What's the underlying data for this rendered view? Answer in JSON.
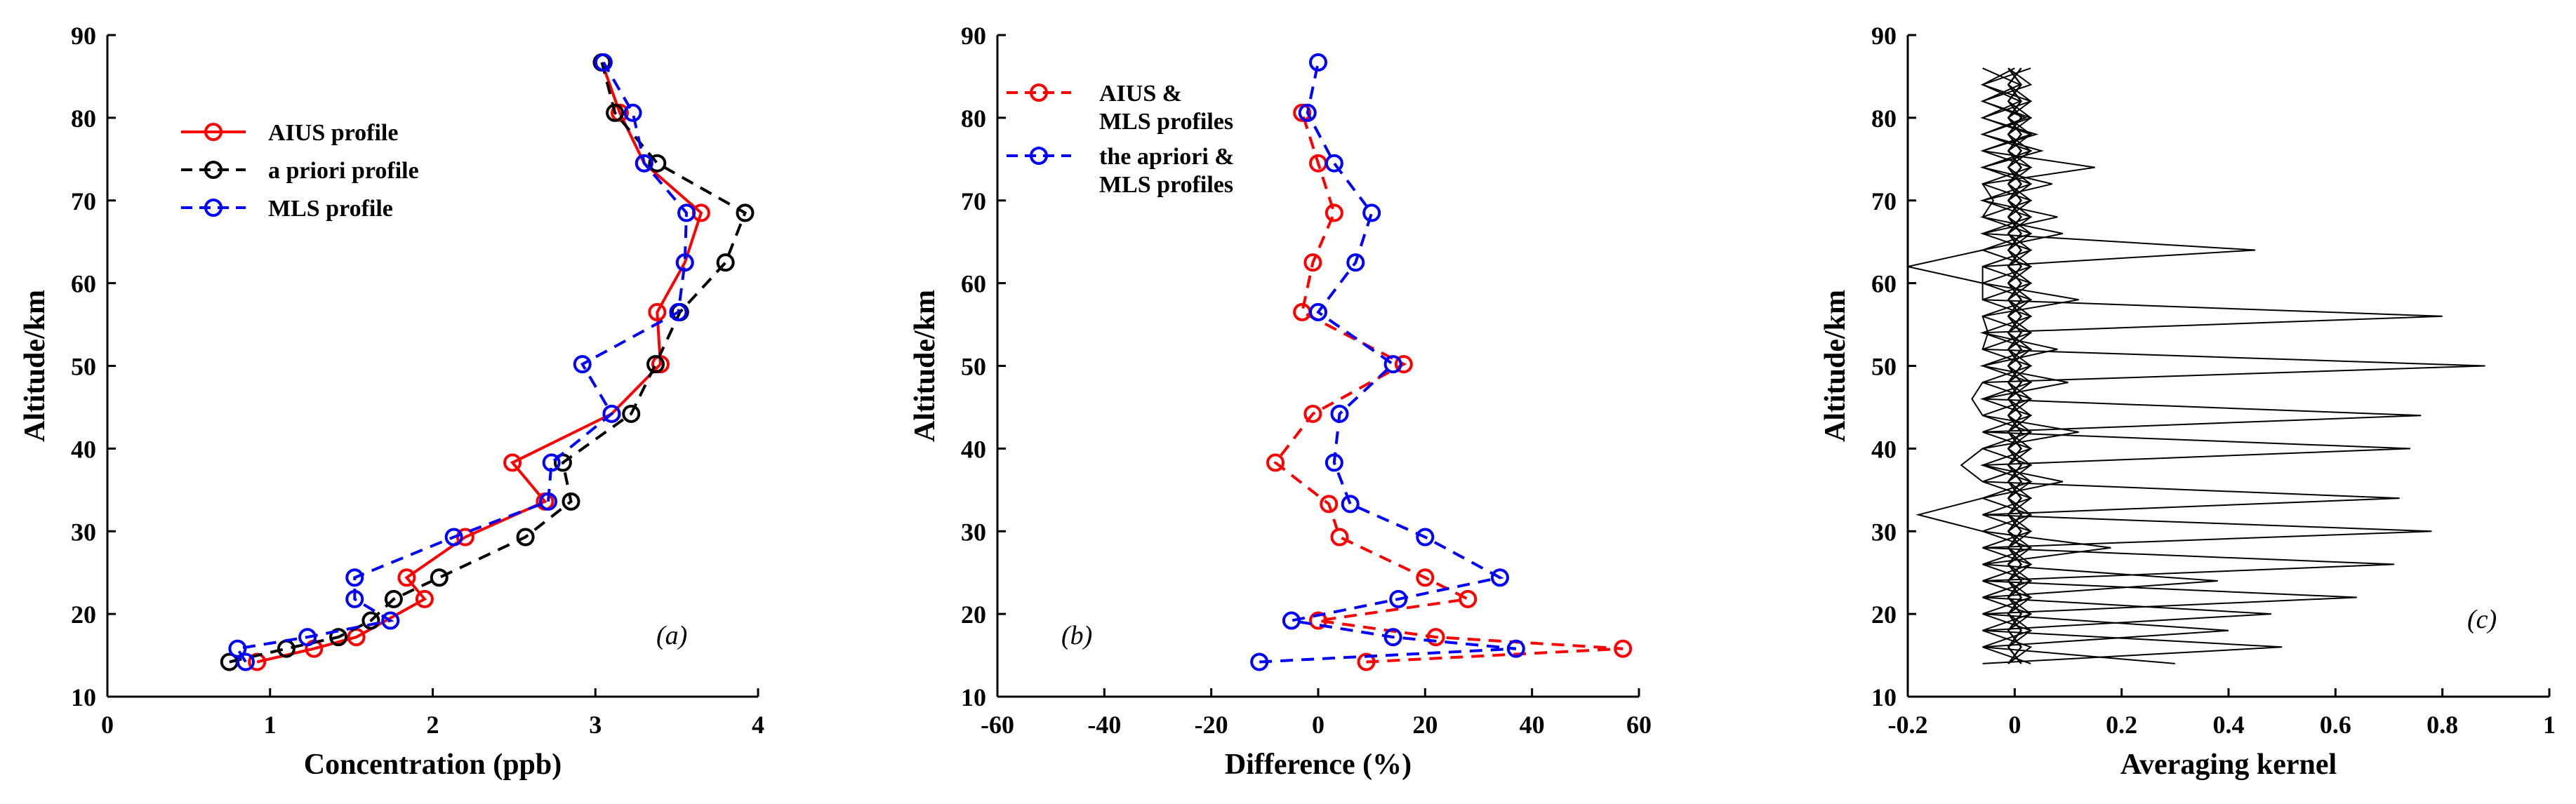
{
  "chart_data": [
    {
      "type": "line",
      "panel_label": "(a)",
      "xlabel": "Concentration (ppb)",
      "ylabel": "Altitude/km",
      "xlim": [
        0,
        4
      ],
      "ylim": [
        10,
        90
      ],
      "xticks": [
        0,
        1,
        2,
        3,
        4
      ],
      "yticks": [
        10,
        20,
        30,
        40,
        50,
        60,
        70,
        80,
        90
      ],
      "legend_position": "top-left",
      "series": [
        {
          "name": "AIUS profile",
          "color": "#ff0000",
          "dash": "solid",
          "x": [
            0.92,
            1.27,
            1.53,
            1.95,
            1.84,
            2.2,
            2.69,
            2.49,
            3.1,
            3.4,
            3.38,
            3.55,
            3.65,
            3.3,
            3.15,
            3.04
          ],
          "y": [
            14.2,
            15.8,
            17.2,
            21.8,
            24.4,
            29.3,
            33.6,
            38.3,
            44.2,
            50.2,
            56.5,
            62.5,
            68.5,
            74.5,
            80.6,
            86.7
          ]
        },
        {
          "name": "a priori profile",
          "color": "#000000",
          "dash": "dashed",
          "x": [
            0.75,
            1.1,
            1.42,
            1.62,
            1.76,
            2.04,
            2.57,
            2.85,
            2.8,
            3.22,
            3.37,
            3.52,
            3.8,
            3.92,
            3.38,
            3.12,
            3.04
          ],
          "y": [
            14.2,
            15.8,
            17.2,
            19.2,
            21.8,
            24.4,
            29.3,
            33.6,
            38.3,
            44.2,
            50.2,
            56.5,
            62.5,
            68.5,
            74.5,
            80.6,
            86.7
          ]
        },
        {
          "name": "MLS profile",
          "color": "#0000ff",
          "dash": "dashed",
          "x": [
            0.85,
            0.8,
            1.23,
            1.74,
            1.52,
            1.52,
            2.13,
            2.71,
            2.73,
            3.1,
            2.92,
            3.51,
            3.55,
            3.56,
            3.3,
            3.23,
            3.05
          ],
          "y": [
            14.2,
            15.8,
            17.2,
            19.2,
            21.8,
            24.4,
            29.3,
            33.6,
            38.3,
            44.2,
            50.2,
            56.5,
            62.5,
            68.5,
            74.5,
            80.6,
            86.7
          ]
        }
      ]
    },
    {
      "type": "line",
      "panel_label": "(b)",
      "xlabel": "Difference (%)",
      "ylabel": "Altitude/km",
      "xlim": [
        -60,
        60
      ],
      "ylim": [
        10,
        90
      ],
      "xticks": [
        -60,
        -40,
        -20,
        0,
        20,
        40,
        60
      ],
      "yticks": [
        10,
        20,
        30,
        40,
        50,
        60,
        70,
        80,
        90
      ],
      "legend_position": "top-left",
      "series": [
        {
          "name": "AIUS & MLS profiles",
          "legend_lines": [
            "AIUS &",
            "MLS profiles"
          ],
          "color": "#ff0000",
          "dash": "dashed",
          "x": [
            9,
            57,
            22,
            0,
            28,
            20,
            4,
            2,
            -8,
            -1,
            16,
            -3,
            -1,
            3,
            0,
            -3
          ],
          "y": [
            14.2,
            15.8,
            17.2,
            19.2,
            21.8,
            24.4,
            29.3,
            33.3,
            38.3,
            44.2,
            50.2,
            56.5,
            62.5,
            68.5,
            74.5,
            80.6
          ]
        },
        {
          "name": "the apriori & MLS profiles",
          "legend_lines": [
            "the apriori &",
            "MLS profiles"
          ],
          "color": "#0000ff",
          "dash": "dashed",
          "x": [
            -11,
            37,
            14,
            -5,
            15,
            34,
            20,
            6,
            3,
            4,
            14,
            0,
            7,
            10,
            3,
            -2,
            0
          ],
          "y": [
            14.2,
            15.8,
            17.2,
            19.2,
            21.8,
            24.4,
            29.3,
            33.3,
            38.3,
            44.2,
            50.2,
            56.5,
            62.5,
            68.5,
            74.5,
            80.6,
            86.7
          ]
        }
      ]
    },
    {
      "type": "line",
      "panel_label": "(c)",
      "xlabel": "Averaging kernel",
      "ylabel": "Altitude/km",
      "xlim": [
        -0.2,
        1
      ],
      "ylim": [
        10,
        90
      ],
      "xticks": [
        -0.2,
        0,
        0.2,
        0.4,
        0.6,
        0.8,
        1
      ],
      "yticks": [
        10,
        20,
        30,
        40,
        50,
        60,
        70,
        80,
        90
      ],
      "altitudes": [
        14,
        16,
        18,
        20,
        22,
        24,
        26,
        28,
        30,
        32,
        34,
        36,
        38,
        40,
        42,
        44,
        46,
        48,
        50,
        52,
        54,
        56,
        58,
        60,
        62,
        64,
        66,
        68,
        70,
        72,
        74,
        76,
        78,
        80,
        82,
        84,
        86
      ],
      "kernel_peaks": [
        {
          "alt": 14,
          "x": 0.3
        },
        {
          "alt": 16,
          "x": 0.5
        },
        {
          "alt": 18,
          "x": 0.4
        },
        {
          "alt": 20,
          "x": 0.48
        },
        {
          "alt": 22,
          "x": 0.64
        },
        {
          "alt": 24,
          "x": 0.38
        },
        {
          "alt": 26,
          "x": 0.71
        },
        {
          "alt": 28,
          "x": 0.18
        },
        {
          "alt": 30,
          "x": 0.78
        },
        {
          "alt": 32,
          "x": -0.18
        },
        {
          "alt": 34,
          "x": 0.72
        },
        {
          "alt": 36,
          "x": 0.09
        },
        {
          "alt": 38,
          "x": -0.1
        },
        {
          "alt": 40,
          "x": 0.74
        },
        {
          "alt": 42,
          "x": 0.12
        },
        {
          "alt": 44,
          "x": 0.76
        },
        {
          "alt": 46,
          "x": -0.08
        },
        {
          "alt": 48,
          "x": 0.1
        },
        {
          "alt": 50,
          "x": 0.88
        },
        {
          "alt": 52,
          "x": 0.08
        },
        {
          "alt": 54,
          "x": -0.05
        },
        {
          "alt": 56,
          "x": 0.8
        },
        {
          "alt": 58,
          "x": 0.12
        },
        {
          "alt": 60,
          "x": -0.06
        },
        {
          "alt": 62,
          "x": -0.2
        },
        {
          "alt": 64,
          "x": 0.45
        },
        {
          "alt": 66,
          "x": 0.09
        },
        {
          "alt": 68,
          "x": 0.08
        },
        {
          "alt": 70,
          "x": -0.04
        },
        {
          "alt": 72,
          "x": 0.07
        },
        {
          "alt": 74,
          "x": 0.15
        },
        {
          "alt": 76,
          "x": 0.05
        },
        {
          "alt": 78,
          "x": 0.04
        },
        {
          "alt": 80,
          "x": 0.02
        },
        {
          "alt": 82,
          "x": 0.01
        },
        {
          "alt": 84,
          "x": 0.01
        },
        {
          "alt": 86,
          "x": 0.0
        }
      ]
    }
  ]
}
